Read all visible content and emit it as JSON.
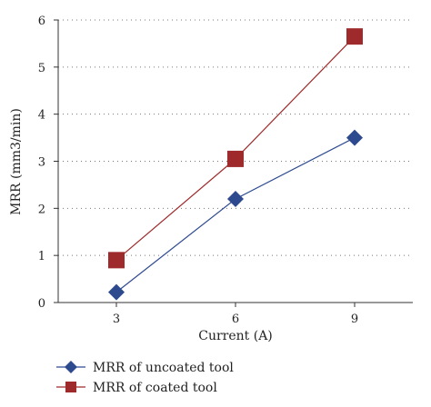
{
  "chart_data": {
    "type": "line",
    "title": "",
    "xlabel": "Current (A)",
    "ylabel": "MRR (mm3/min)",
    "x": [
      3,
      6,
      9
    ],
    "xticks": [
      "3",
      "6",
      "9"
    ],
    "ylim": [
      0,
      6
    ],
    "yticks": [
      "0",
      "1",
      "2",
      "3",
      "4",
      "5",
      "6"
    ],
    "grid": "horizontal dotted",
    "legend_position": "bottom-left",
    "series": [
      {
        "name": "MRR of uncoated tool",
        "values": [
          0.22,
          2.2,
          3.5
        ],
        "marker": "diamond",
        "color": "#2e4a8f"
      },
      {
        "name": "MRR of coated tool",
        "values": [
          0.9,
          3.05,
          5.65
        ],
        "marker": "square",
        "color": "#9e2a2b"
      }
    ]
  }
}
